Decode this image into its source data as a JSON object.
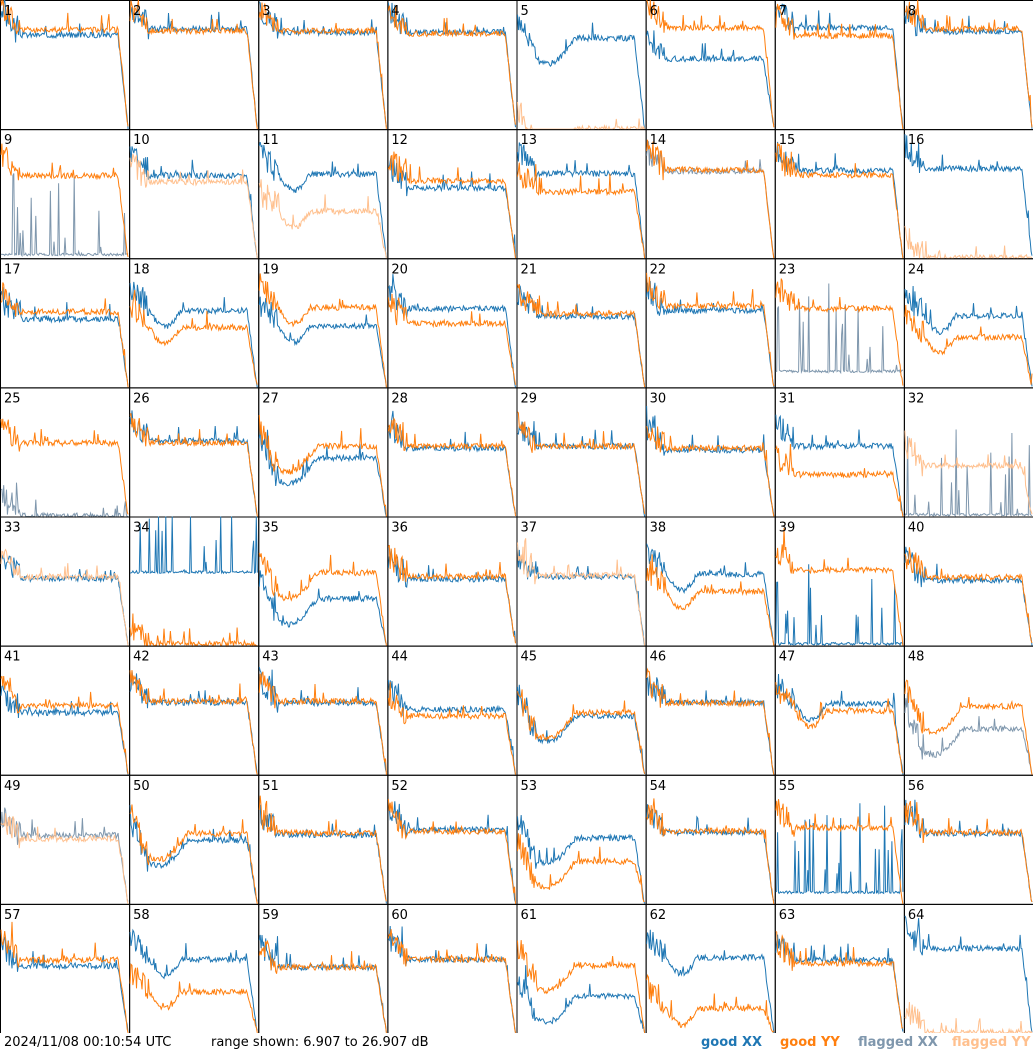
{
  "timestamp": "2024/11/08 00:10:54 UTC",
  "range_label": "range shown: 6.907 to 26.907 dB",
  "legend": {
    "good_xx": "good XX",
    "good_yy": "good YY",
    "flagged_xx": "flagged XX",
    "flagged_yy": "flagged YY"
  },
  "colors": {
    "good_xx": "#1f77b4",
    "good_yy": "#ff7f0e",
    "flagged_xx": "#7f97ad",
    "flagged_yy": "#ffc08e"
  },
  "chart_data": {
    "type": "line",
    "grid": "8x8",
    "ylim": [
      6.907,
      26.907
    ],
    "unit": "dB",
    "series_keys": [
      "good_xx",
      "good_yy",
      "flagged_xx",
      "flagged_yy"
    ],
    "panels": [
      {
        "id": "1",
        "xx": "good_xx",
        "yy": "good_yy",
        "shape": "flat",
        "xx_level": 21.5,
        "yy_level": 22.3
      },
      {
        "id": "2",
        "xx": "good_xx",
        "yy": "good_yy",
        "shape": "flat",
        "xx_level": 22.4,
        "yy_level": 22.1
      },
      {
        "id": "3",
        "xx": "good_xx",
        "yy": "good_yy",
        "shape": "flat",
        "xx_level": 21.9,
        "yy_level": 22.1
      },
      {
        "id": "4",
        "xx": "good_xx",
        "yy": "good_yy",
        "shape": "flat",
        "xx_level": 21.9,
        "yy_level": 21.7
      },
      {
        "id": "5",
        "xx": "good_xx",
        "yy": "flagged_yy",
        "shape": "bowl",
        "xx_level": 21.0,
        "yy_level": 7.0
      },
      {
        "id": "6",
        "xx": "good_xx",
        "yy": "good_yy",
        "shape": "flat",
        "xx_level": 17.8,
        "yy_level": 22.6
      },
      {
        "id": "7",
        "xx": "good_xx",
        "yy": "good_yy",
        "shape": "flat",
        "xx_level": 22.6,
        "yy_level": 21.4
      },
      {
        "id": "8",
        "xx": "good_xx",
        "yy": "good_yy",
        "shape": "flat",
        "xx_level": 22.0,
        "yy_level": 22.4
      },
      {
        "id": "9",
        "xx": "flagged_xx",
        "yy": "good_yy",
        "shape": "spiky",
        "xx_level": 7.3,
        "yy_level": 19.7
      },
      {
        "id": "10",
        "xx": "good_xx",
        "yy": "flagged_yy",
        "shape": "flat",
        "xx_level": 19.7,
        "yy_level": 18.7
      },
      {
        "id": "11",
        "xx": "good_xx",
        "yy": "flagged_yy",
        "shape": "drop",
        "xx_level": 19.9,
        "yy_level": 14.2
      },
      {
        "id": "12",
        "xx": "good_xx",
        "yy": "good_yy",
        "shape": "flat",
        "xx_level": 17.8,
        "yy_level": 18.9
      },
      {
        "id": "13",
        "xx": "good_xx",
        "yy": "good_yy",
        "shape": "flat",
        "xx_level": 20.0,
        "yy_level": 17.2
      },
      {
        "id": "14",
        "xx": "flagged_xx",
        "yy": "good_yy",
        "shape": "flat",
        "xx_level": 20.4,
        "yy_level": 20.6
      },
      {
        "id": "15",
        "xx": "good_xx",
        "yy": "good_yy",
        "shape": "flat",
        "xx_level": 20.5,
        "yy_level": 19.8
      },
      {
        "id": "16",
        "xx": "good_xx",
        "yy": "flagged_yy",
        "shape": "flat",
        "xx_level": 20.8,
        "yy_level": 7.0
      },
      {
        "id": "17",
        "xx": "good_xx",
        "yy": "good_yy",
        "shape": "flat",
        "xx_level": 17.5,
        "yy_level": 18.6
      },
      {
        "id": "18",
        "xx": "good_xx",
        "yy": "good_yy",
        "shape": "drop",
        "xx_level": 18.8,
        "yy_level": 16.2
      },
      {
        "id": "19",
        "xx": "good_xx",
        "yy": "good_yy",
        "shape": "drop",
        "xx_level": 16.4,
        "yy_level": 19.3
      },
      {
        "id": "20",
        "xx": "good_xx",
        "yy": "good_yy",
        "shape": "flat",
        "xx_level": 19.1,
        "yy_level": 16.8
      },
      {
        "id": "21",
        "xx": "good_xx",
        "yy": "good_yy",
        "shape": "flat",
        "xx_level": 17.9,
        "yy_level": 18.3
      },
      {
        "id": "22",
        "xx": "good_xx",
        "yy": "good_yy",
        "shape": "flat",
        "xx_level": 18.8,
        "yy_level": 19.5
      },
      {
        "id": "23",
        "xx": "flagged_xx",
        "yy": "good_yy",
        "shape": "spiky",
        "xx_level": 9.2,
        "yy_level": 19.1
      },
      {
        "id": "24",
        "xx": "good_xx",
        "yy": "good_yy",
        "shape": "drop",
        "xx_level": 18.0,
        "yy_level": 14.7
      },
      {
        "id": "25",
        "xx": "flagged_xx",
        "yy": "good_yy",
        "shape": "flat",
        "xx_level": 7.0,
        "yy_level": 18.3
      },
      {
        "id": "26",
        "xx": "good_xx",
        "yy": "good_yy",
        "shape": "flat",
        "xx_level": 18.6,
        "yy_level": 18.3
      },
      {
        "id": "27",
        "xx": "good_xx",
        "yy": "good_yy",
        "shape": "bowl",
        "xx_level": 16.0,
        "yy_level": 17.8
      },
      {
        "id": "28",
        "xx": "good_xx",
        "yy": "good_yy",
        "shape": "flat",
        "xx_level": 17.5,
        "yy_level": 17.8
      },
      {
        "id": "29",
        "xx": "good_xx",
        "yy": "good_yy",
        "shape": "flat",
        "xx_level": 17.8,
        "yy_level": 17.8
      },
      {
        "id": "30",
        "xx": "good_xx",
        "yy": "good_yy",
        "shape": "flat",
        "xx_level": 17.2,
        "yy_level": 17.5
      },
      {
        "id": "31",
        "xx": "good_xx",
        "yy": "good_yy",
        "shape": "flat",
        "xx_level": 17.8,
        "yy_level": 13.4
      },
      {
        "id": "32",
        "xx": "flagged_xx",
        "yy": "flagged_yy",
        "shape": "spiky",
        "xx_level": 7.0,
        "yy_level": 14.8
      },
      {
        "id": "33",
        "xx": "good_xx",
        "yy": "flagged_yy",
        "shape": "flat",
        "xx_level": 17.3,
        "yy_level": 17.6
      },
      {
        "id": "34",
        "xx": "good_xx",
        "yy": "good_yy",
        "shape": "spiky",
        "xx_level": 18.1,
        "yy_level": 7.2
      },
      {
        "id": "35",
        "xx": "good_xx",
        "yy": "good_yy",
        "shape": "bowl",
        "xx_level": 14.2,
        "yy_level": 18.2
      },
      {
        "id": "36",
        "xx": "good_xx",
        "yy": "good_yy",
        "shape": "flat",
        "xx_level": 17.2,
        "yy_level": 17.6
      },
      {
        "id": "37",
        "xx": "good_xx",
        "yy": "flagged_yy",
        "shape": "flat",
        "xx_level": 17.6,
        "yy_level": 17.8
      },
      {
        "id": "38",
        "xx": "good_xx",
        "yy": "good_yy",
        "shape": "drop",
        "xx_level": 18.0,
        "yy_level": 15.3
      },
      {
        "id": "39",
        "xx": "good_xx",
        "yy": "good_yy",
        "shape": "spiky",
        "xx_level": 7.0,
        "yy_level": 18.6
      },
      {
        "id": "40",
        "xx": "good_xx",
        "yy": "good_yy",
        "shape": "flat",
        "xx_level": 17.0,
        "yy_level": 17.5
      },
      {
        "id": "41",
        "xx": "good_xx",
        "yy": "good_yy",
        "shape": "flat",
        "xx_level": 16.5,
        "yy_level": 17.6
      },
      {
        "id": "42",
        "xx": "good_xx",
        "yy": "good_yy",
        "shape": "flat",
        "xx_level": 18.1,
        "yy_level": 18.3
      },
      {
        "id": "43",
        "xx": "good_xx",
        "yy": "good_yy",
        "shape": "flat",
        "xx_level": 18.0,
        "yy_level": 18.3
      },
      {
        "id": "44",
        "xx": "good_xx",
        "yy": "good_yy",
        "shape": "flat",
        "xx_level": 17.0,
        "yy_level": 16.0
      },
      {
        "id": "45",
        "xx": "good_xx",
        "yy": "good_yy",
        "shape": "bowl",
        "xx_level": 16.0,
        "yy_level": 16.5
      },
      {
        "id": "46",
        "xx": "good_xx",
        "yy": "good_yy",
        "shape": "flat",
        "xx_level": 18.1,
        "yy_level": 18.0
      },
      {
        "id": "47",
        "xx": "good_xx",
        "yy": "good_yy",
        "shape": "drop",
        "xx_level": 17.9,
        "yy_level": 16.8
      },
      {
        "id": "48",
        "xx": "flagged_xx",
        "yy": "good_yy",
        "shape": "bowl",
        "xx_level": 14.0,
        "yy_level": 17.5
      },
      {
        "id": "49",
        "xx": "flagged_xx",
        "yy": "flagged_yy",
        "shape": "flat",
        "xx_level": 17.5,
        "yy_level": 17.0
      },
      {
        "id": "50",
        "xx": "good_xx",
        "yy": "good_yy",
        "shape": "bowl",
        "xx_level": 16.8,
        "yy_level": 17.8
      },
      {
        "id": "51",
        "xx": "good_xx",
        "yy": "good_yy",
        "shape": "flat",
        "xx_level": 17.6,
        "yy_level": 17.9
      },
      {
        "id": "52",
        "xx": "good_xx",
        "yy": "good_yy",
        "shape": "flat",
        "xx_level": 18.4,
        "yy_level": 18.1
      },
      {
        "id": "53",
        "xx": "good_xx",
        "yy": "good_yy",
        "shape": "bowl",
        "xx_level": 17.1,
        "yy_level": 13.5
      },
      {
        "id": "54",
        "xx": "good_xx",
        "yy": "good_yy",
        "shape": "flat",
        "xx_level": 18.0,
        "yy_level": 18.2
      },
      {
        "id": "55",
        "xx": "good_xx",
        "yy": "good_yy",
        "shape": "spiky",
        "xx_level": 8.5,
        "yy_level": 18.7
      },
      {
        "id": "56",
        "xx": "good_xx",
        "yy": "good_yy",
        "shape": "flat",
        "xx_level": 17.8,
        "yy_level": 18.0
      },
      {
        "id": "57",
        "xx": "good_xx",
        "yy": "good_yy",
        "shape": "flat",
        "xx_level": 17.3,
        "yy_level": 18.2
      },
      {
        "id": "58",
        "xx": "good_xx",
        "yy": "good_yy",
        "shape": "drop",
        "xx_level": 18.3,
        "yy_level": 13.3
      },
      {
        "id": "59",
        "xx": "good_xx",
        "yy": "good_yy",
        "shape": "flat",
        "xx_level": 17.1,
        "yy_level": 17.1
      },
      {
        "id": "60",
        "xx": "good_xx",
        "yy": "good_yy",
        "shape": "flat",
        "xx_level": 18.3,
        "yy_level": 18.3
      },
      {
        "id": "61",
        "xx": "good_xx",
        "yy": "good_yy",
        "shape": "bowl",
        "xx_level": 12.6,
        "yy_level": 17.4
      },
      {
        "id": "62",
        "xx": "good_xx",
        "yy": "good_yy",
        "shape": "drop",
        "xx_level": 18.6,
        "yy_level": 10.7
      },
      {
        "id": "63",
        "xx": "good_xx",
        "yy": "good_yy",
        "shape": "flat",
        "xx_level": 18.2,
        "yy_level": 17.7
      },
      {
        "id": "64",
        "xx": "good_xx",
        "yy": "flagged_yy",
        "shape": "flat",
        "xx_level": 20.0,
        "yy_level": 7.0
      }
    ]
  }
}
